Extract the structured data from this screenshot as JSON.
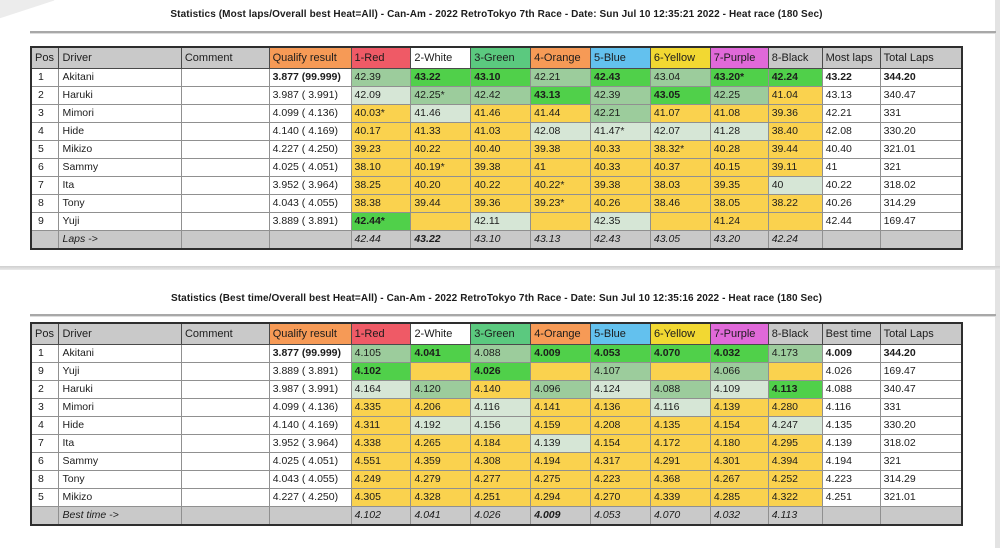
{
  "colors": {
    "cell_best": "#50d04a",
    "cell_good": "#9ccc9c",
    "cell_near": "#d6e6d6",
    "cell_base": "#fad24e",
    "header_gray": "#c9c9c9",
    "footer_gray": "#c9c9c9",
    "qualify_header": "#f69a56",
    "table_border": "#2e2e2e"
  },
  "columns": {
    "pos": "Pos",
    "driver": "Driver",
    "comment": "Comment",
    "qualify": "Qualify result"
  },
  "heats": [
    {
      "label": "1-Red",
      "color": "#ef5a66"
    },
    {
      "label": "2-White",
      "color": "#ffffff"
    },
    {
      "label": "3-Green",
      "color": "#5bc97f"
    },
    {
      "label": "4-Orange",
      "color": "#f69a56"
    },
    {
      "label": "5-Blue",
      "color": "#63c1ee"
    },
    {
      "label": "6-Yellow",
      "color": "#f2d832"
    },
    {
      "label": "7-Purple",
      "color": "#e069d9"
    },
    {
      "label": "8-Black",
      "color": "#c9c9c9"
    }
  ],
  "tables": [
    {
      "title": "Statistics (Most laps/Overall best Heat=All) - Can-Am - 2022 RetroTokyo 7th Race - Date: Sun Jul 10 12:35:21 2022 - Heat race (180 Sec)",
      "best_label": "Most laps",
      "total_label": "Total Laps",
      "footer_label": "Laps ->",
      "rows": [
        {
          "pos": "1",
          "driver": "Akitani",
          "comment": "",
          "qualify": "3.877 (99.999)",
          "qb": true,
          "heats": [
            {
              "v": "42.39",
              "c": "good"
            },
            {
              "v": "43.22",
              "c": "best",
              "b": true
            },
            {
              "v": "43.10",
              "c": "best",
              "b": true
            },
            {
              "v": "42.21",
              "c": "good"
            },
            {
              "v": "42.43",
              "c": "best",
              "b": true
            },
            {
              "v": "43.04",
              "c": "good"
            },
            {
              "v": "43.20*",
              "c": "best",
              "b": true
            },
            {
              "v": "42.24",
              "c": "best",
              "b": true
            }
          ],
          "best": "43.22",
          "bb": true,
          "total": "344.20",
          "tb": true
        },
        {
          "pos": "2",
          "driver": "Haruki",
          "comment": "",
          "qualify": "3.987 ( 3.991)",
          "heats": [
            {
              "v": "42.09",
              "c": "near"
            },
            {
              "v": "42.25*",
              "c": "good"
            },
            {
              "v": "42.42",
              "c": "good"
            },
            {
              "v": "43.13",
              "c": "best",
              "b": true
            },
            {
              "v": "42.39",
              "c": "good"
            },
            {
              "v": "43.05",
              "c": "best",
              "b": true
            },
            {
              "v": "42.25",
              "c": "good"
            },
            {
              "v": "41.04"
            }
          ],
          "best": "43.13",
          "total": "340.47"
        },
        {
          "pos": "3",
          "driver": "Mimori",
          "comment": "",
          "qualify": "4.099 ( 4.136)",
          "heats": [
            {
              "v": "40.03*"
            },
            {
              "v": "41.46",
              "c": "near"
            },
            {
              "v": "41.46"
            },
            {
              "v": "41.44"
            },
            {
              "v": "42.21",
              "c": "good"
            },
            {
              "v": "41.07"
            },
            {
              "v": "41.08"
            },
            {
              "v": "39.36"
            }
          ],
          "best": "42.21",
          "total": "331"
        },
        {
          "pos": "4",
          "driver": "Hide",
          "comment": "",
          "qualify": "4.140 ( 4.169)",
          "heats": [
            {
              "v": "40.17"
            },
            {
              "v": "41.33"
            },
            {
              "v": "41.03"
            },
            {
              "v": "42.08",
              "c": "near"
            },
            {
              "v": "41.47*",
              "c": "near"
            },
            {
              "v": "42.07",
              "c": "near"
            },
            {
              "v": "41.28",
              "c": "near"
            },
            {
              "v": "38.40"
            }
          ],
          "best": "42.08",
          "total": "330.20"
        },
        {
          "pos": "5",
          "driver": "Mikizo",
          "comment": "",
          "qualify": "4.227 ( 4.250)",
          "heats": [
            {
              "v": "39.23"
            },
            {
              "v": "40.22"
            },
            {
              "v": "40.40"
            },
            {
              "v": "39.38"
            },
            {
              "v": "40.33"
            },
            {
              "v": "38.32*"
            },
            {
              "v": "40.28"
            },
            {
              "v": "39.44"
            }
          ],
          "best": "40.40",
          "total": "321.01"
        },
        {
          "pos": "6",
          "driver": "Sammy",
          "comment": "",
          "qualify": "4.025 ( 4.051)",
          "heats": [
            {
              "v": "38.10"
            },
            {
              "v": "40.19*"
            },
            {
              "v": "39.38"
            },
            {
              "v": "41"
            },
            {
              "v": "40.33"
            },
            {
              "v": "40.37"
            },
            {
              "v": "40.15"
            },
            {
              "v": "39.11"
            }
          ],
          "best": "41",
          "total": "321"
        },
        {
          "pos": "7",
          "driver": "Ita",
          "comment": "",
          "qualify": "3.952 ( 3.964)",
          "heats": [
            {
              "v": "38.25"
            },
            {
              "v": "40.20"
            },
            {
              "v": "40.22"
            },
            {
              "v": "40.22*"
            },
            {
              "v": "39.38"
            },
            {
              "v": "38.03"
            },
            {
              "v": "39.35"
            },
            {
              "v": "40",
              "c": "near"
            }
          ],
          "best": "40.22",
          "total": "318.02"
        },
        {
          "pos": "8",
          "driver": "Tony",
          "comment": "",
          "qualify": "4.043 ( 4.055)",
          "heats": [
            {
              "v": "38.38"
            },
            {
              "v": "39.44"
            },
            {
              "v": "39.36"
            },
            {
              "v": "39.23*"
            },
            {
              "v": "40.26"
            },
            {
              "v": "38.46"
            },
            {
              "v": "38.05"
            },
            {
              "v": "38.22"
            }
          ],
          "best": "40.26",
          "total": "314.29"
        },
        {
          "pos": "9",
          "driver": "Yuji",
          "comment": "",
          "qualify": "3.889 ( 3.891)",
          "heats": [
            {
              "v": "42.44*",
              "c": "best",
              "b": true
            },
            {
              "v": ""
            },
            {
              "v": "42.11",
              "c": "near"
            },
            {
              "v": ""
            },
            {
              "v": "42.35",
              "c": "near"
            },
            {
              "v": ""
            },
            {
              "v": "41.24"
            },
            {
              "v": ""
            }
          ],
          "best": "42.44",
          "total": "169.47"
        }
      ],
      "footer": [
        {
          "v": "42.44"
        },
        {
          "v": "43.22",
          "b": true
        },
        {
          "v": "43.10"
        },
        {
          "v": "43.13"
        },
        {
          "v": "42.43"
        },
        {
          "v": "43.05"
        },
        {
          "v": "43.20"
        },
        {
          "v": "42.24"
        }
      ]
    },
    {
      "title": "Statistics (Best time/Overall best Heat=All) - Can-Am - 2022 RetroTokyo 7th Race - Date: Sun Jul 10 12:35:16 2022 - Heat race (180 Sec)",
      "best_label": "Best time",
      "total_label": "Total Laps",
      "footer_label": "Best time ->",
      "rows": [
        {
          "pos": "1",
          "driver": "Akitani",
          "comment": "",
          "qualify": "3.877 (99.999)",
          "qb": true,
          "heats": [
            {
              "v": "4.105",
              "c": "good"
            },
            {
              "v": "4.041",
              "c": "best",
              "b": true
            },
            {
              "v": "4.088",
              "c": "good"
            },
            {
              "v": "4.009",
              "c": "best",
              "b": true
            },
            {
              "v": "4.053",
              "c": "best",
              "b": true
            },
            {
              "v": "4.070",
              "c": "best",
              "b": true
            },
            {
              "v": "4.032",
              "c": "best",
              "b": true
            },
            {
              "v": "4.173",
              "c": "good"
            }
          ],
          "best": "4.009",
          "bb": true,
          "total": "344.20",
          "tb": true
        },
        {
          "pos": "9",
          "driver": "Yuji",
          "comment": "",
          "qualify": "3.889 ( 3.891)",
          "heats": [
            {
              "v": "4.102",
              "c": "best",
              "b": true
            },
            {
              "v": ""
            },
            {
              "v": "4.026",
              "c": "best",
              "b": true
            },
            {
              "v": ""
            },
            {
              "v": "4.107",
              "c": "good"
            },
            {
              "v": ""
            },
            {
              "v": "4.066",
              "c": "good"
            },
            {
              "v": ""
            }
          ],
          "best": "4.026",
          "total": "169.47"
        },
        {
          "pos": "2",
          "driver": "Haruki",
          "comment": "",
          "qualify": "3.987 ( 3.991)",
          "heats": [
            {
              "v": "4.164",
              "c": "near"
            },
            {
              "v": "4.120",
              "c": "good"
            },
            {
              "v": "4.140"
            },
            {
              "v": "4.096",
              "c": "good"
            },
            {
              "v": "4.124",
              "c": "near"
            },
            {
              "v": "4.088",
              "c": "good"
            },
            {
              "v": "4.109",
              "c": "near"
            },
            {
              "v": "4.113",
              "c": "best",
              "b": true
            }
          ],
          "best": "4.088",
          "total": "340.47"
        },
        {
          "pos": "3",
          "driver": "Mimori",
          "comment": "",
          "qualify": "4.099 ( 4.136)",
          "heats": [
            {
              "v": "4.335"
            },
            {
              "v": "4.206"
            },
            {
              "v": "4.116",
              "c": "near"
            },
            {
              "v": "4.141"
            },
            {
              "v": "4.136"
            },
            {
              "v": "4.116",
              "c": "near"
            },
            {
              "v": "4.139"
            },
            {
              "v": "4.280"
            }
          ],
          "best": "4.116",
          "total": "331"
        },
        {
          "pos": "4",
          "driver": "Hide",
          "comment": "",
          "qualify": "4.140 ( 4.169)",
          "heats": [
            {
              "v": "4.311"
            },
            {
              "v": "4.192",
              "c": "near"
            },
            {
              "v": "4.156",
              "c": "near"
            },
            {
              "v": "4.159"
            },
            {
              "v": "4.208"
            },
            {
              "v": "4.135"
            },
            {
              "v": "4.154"
            },
            {
              "v": "4.247",
              "c": "near"
            }
          ],
          "best": "4.135",
          "total": "330.20"
        },
        {
          "pos": "7",
          "driver": "Ita",
          "comment": "",
          "qualify": "3.952 ( 3.964)",
          "heats": [
            {
              "v": "4.338"
            },
            {
              "v": "4.265"
            },
            {
              "v": "4.184"
            },
            {
              "v": "4.139",
              "c": "near"
            },
            {
              "v": "4.154"
            },
            {
              "v": "4.172"
            },
            {
              "v": "4.180"
            },
            {
              "v": "4.295"
            }
          ],
          "best": "4.139",
          "total": "318.02"
        },
        {
          "pos": "6",
          "driver": "Sammy",
          "comment": "",
          "qualify": "4.025 ( 4.051)",
          "heats": [
            {
              "v": "4.551"
            },
            {
              "v": "4.359"
            },
            {
              "v": "4.308"
            },
            {
              "v": "4.194"
            },
            {
              "v": "4.317"
            },
            {
              "v": "4.291"
            },
            {
              "v": "4.301"
            },
            {
              "v": "4.394"
            }
          ],
          "best": "4.194",
          "total": "321"
        },
        {
          "pos": "8",
          "driver": "Tony",
          "comment": "",
          "qualify": "4.043 ( 4.055)",
          "heats": [
            {
              "v": "4.249"
            },
            {
              "v": "4.279"
            },
            {
              "v": "4.277"
            },
            {
              "v": "4.275"
            },
            {
              "v": "4.223"
            },
            {
              "v": "4.368"
            },
            {
              "v": "4.267"
            },
            {
              "v": "4.252"
            }
          ],
          "best": "4.223",
          "total": "314.29"
        },
        {
          "pos": "5",
          "driver": "Mikizo",
          "comment": "",
          "qualify": "4.227 ( 4.250)",
          "heats": [
            {
              "v": "4.305"
            },
            {
              "v": "4.328"
            },
            {
              "v": "4.251"
            },
            {
              "v": "4.294"
            },
            {
              "v": "4.270"
            },
            {
              "v": "4.339"
            },
            {
              "v": "4.285"
            },
            {
              "v": "4.322"
            }
          ],
          "best": "4.251",
          "total": "321.01"
        }
      ],
      "footer": [
        {
          "v": "4.102"
        },
        {
          "v": "4.041"
        },
        {
          "v": "4.026"
        },
        {
          "v": "4.009",
          "b": true
        },
        {
          "v": "4.053"
        },
        {
          "v": "4.070"
        },
        {
          "v": "4.032"
        },
        {
          "v": "4.113"
        }
      ]
    }
  ]
}
